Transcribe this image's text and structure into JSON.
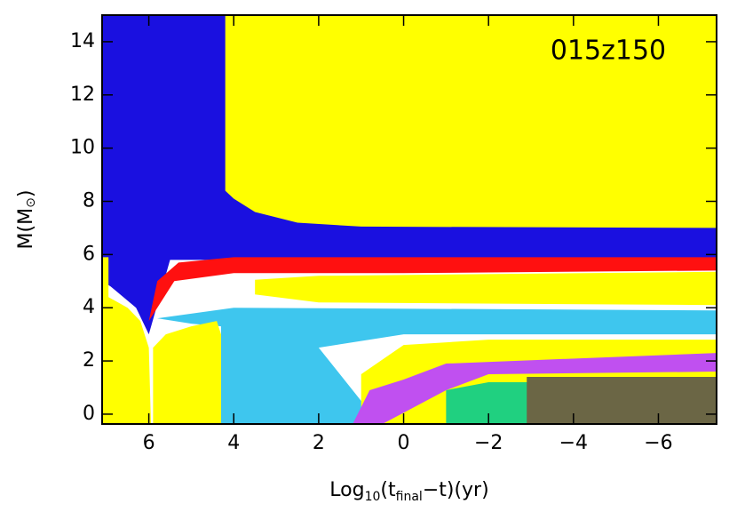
{
  "chart_data": {
    "type": "regions",
    "annotation": "015z150",
    "xlabel_parts": [
      "Log",
      "10",
      "(t",
      "final",
      "−t)(yr)"
    ],
    "ylabel_parts": [
      "M(M",
      "⊙",
      ")"
    ],
    "xlim": [
      7.1,
      -7.37
    ],
    "ylim": [
      -0.37,
      15
    ],
    "xticks": [
      6,
      4,
      2,
      0,
      {
        "value": -2,
        "label": "−2"
      },
      {
        "value": -4,
        "label": "−4"
      },
      {
        "value": -6,
        "label": "−6"
      }
    ],
    "yticks": [
      0,
      2,
      4,
      6,
      8,
      10,
      12,
      14
    ],
    "regions": [
      {
        "color": "#1a10e0",
        "x": [
          7.1,
          -7.37,
          -7.37,
          5.5,
          6.0,
          6.3,
          6.9,
          7.1
        ],
        "y": [
          15,
          15,
          5.8,
          5.8,
          3.0,
          4.0,
          4.8,
          5.0
        ]
      },
      {
        "color": "#ffff00",
        "x": [
          4.2,
          4.2,
          4.0,
          3.5,
          2.5,
          1,
          -7.37,
          -7.37
        ],
        "y": [
          15,
          8.4,
          8.1,
          7.6,
          7.2,
          7.05,
          7.0,
          15
        ]
      },
      {
        "color": "#ff1010",
        "x": [
          6.0,
          5.8,
          5.3,
          4,
          -7.37,
          -7.37,
          0,
          4,
          5.4,
          5.8
        ],
        "y": [
          3.5,
          5.0,
          5.7,
          5.9,
          5.9,
          5.4,
          5.3,
          5.3,
          5.0,
          4.0
        ]
      },
      {
        "color": "#ffff00",
        "x": [
          3.5,
          3.5,
          2,
          -7.37,
          -7.37,
          2
        ],
        "y": [
          4.5,
          5.05,
          5.2,
          5.35,
          4.1,
          4.2
        ]
      },
      {
        "color": "#3ec6ee",
        "x": [
          5.8,
          4,
          -7.37,
          -7.37,
          0,
          2,
          1,
          0.5,
          4.3,
          4.3,
          5
        ],
        "y": [
          3.6,
          4.0,
          3.9,
          3.0,
          3.0,
          2.5,
          0.5,
          -0.37,
          -0.37,
          3.3,
          3.4
        ]
      },
      {
        "color": "#ffff00",
        "x": [
          7.1,
          7.1,
          6.95,
          6.95,
          6.5,
          6.2,
          6.0,
          5.95
        ],
        "y": [
          -0.37,
          5.9,
          5.9,
          4.4,
          4.0,
          3.5,
          2.5,
          -0.37
        ]
      },
      {
        "color": "#ffff00",
        "x": [
          5.9,
          5.9,
          5.6,
          5,
          4.4,
          4.3,
          4.3
        ],
        "y": [
          -0.37,
          2.5,
          3.0,
          3.3,
          3.5,
          3.0,
          -0.37
        ]
      },
      {
        "color": "#ffff00",
        "x": [
          1,
          1,
          0,
          -2,
          -7.37,
          -7.37
        ],
        "y": [
          -0.37,
          1.5,
          2.6,
          2.8,
          2.8,
          -0.37
        ]
      },
      {
        "color": "#c050f0",
        "x": [
          1.2,
          0.8,
          0,
          -1,
          -7.37,
          -7.37,
          -2,
          -1,
          0.5
        ],
        "y": [
          -0.37,
          0.9,
          1.3,
          1.9,
          2.3,
          1.6,
          1.5,
          0.9,
          -0.37
        ]
      },
      {
        "color": "#20d080",
        "x": [
          -1,
          -1,
          -2,
          -3,
          -3
        ],
        "y": [
          -0.37,
          0.9,
          1.2,
          1.2,
          -0.37
        ]
      },
      {
        "color": "#6b6645",
        "x": [
          -2.9,
          -2.9,
          -7.37,
          -7.37
        ],
        "y": [
          -0.37,
          1.4,
          1.4,
          -0.37
        ]
      }
    ]
  }
}
